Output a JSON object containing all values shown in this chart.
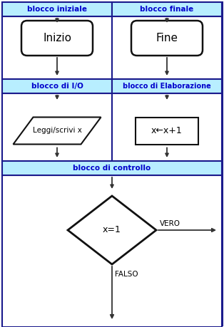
{
  "bg_color": "#ffffff",
  "outer_border_color": "#1a1a8c",
  "header_bg": "#b8eeff",
  "header_text_color": "#0000cc",
  "shape_edge_color": "#111111",
  "shape_fill": "#ffffff",
  "arrow_color": "#333333",
  "cell_bg": "#ffffff",
  "sections": {
    "blocco_iniziale": "blocco iniziale",
    "blocco_finale": "blocco finale",
    "blocco_io": "blocco di I/O",
    "blocco_elab": "blocco di Elaborazione",
    "blocco_ctrl": "blocco di controllo"
  },
  "labels": {
    "inizio": "Inizio",
    "fine": "Fine",
    "io": "Leggi/scrivi x",
    "elab": "x←x+1",
    "ctrl": "x=1",
    "vero": "VERO",
    "falso": "FALSO"
  },
  "fig_width": 3.14,
  "fig_height": 4.59,
  "dpi": 100
}
